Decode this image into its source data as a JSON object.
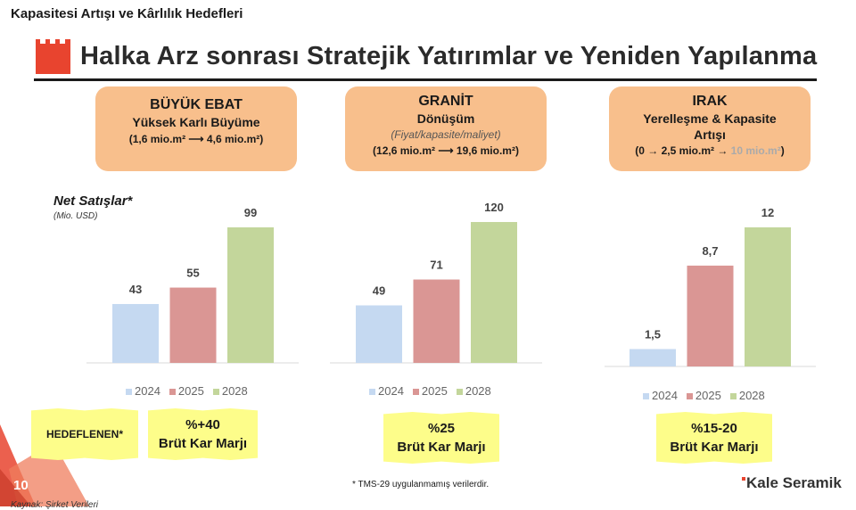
{
  "header": {
    "top_title": "Kapasitesi Artışı ve Kârlılık Hedefleri",
    "main_title": "Halka Arz sonrası Stratejik Yatırımlar ve Yeniden Yapılanma"
  },
  "segments": [
    {
      "title": "BÜYÜK EBAT",
      "subtitle": "Yüksek Karlı Büyüme",
      "detail": "",
      "capacity": "(1,6 mio.m² ⟶ 4,6 mio.m²)",
      "capacity_grey": "",
      "margin_value": "%+40",
      "margin_label": "Brüt Kar Marjı"
    },
    {
      "title": "GRANİT",
      "subtitle": "Dönüşüm",
      "detail": "(Fiyat/kapasite/maliyet)",
      "capacity": "(12,6 mio.m² ⟶ 19,6 mio.m²)",
      "capacity_grey": "",
      "margin_value": "%25",
      "margin_label": "Brüt Kar Marjı"
    },
    {
      "title": "IRAK",
      "subtitle": "Yerelleşme & Kapasite Artışı",
      "detail": "",
      "capacity": "(0 → 2,5 mio.m² →",
      "capacity_grey": "10 mio.m²",
      "capacity_end": ")",
      "margin_value": "%15-20",
      "margin_label": "Brüt Kar Marjı"
    }
  ],
  "net_sales": {
    "label": "Net Satışlar*",
    "unit": "(Mio. USD)"
  },
  "target_label": "HEDEFLENEN*",
  "colors": {
    "2024": "#c5d9f1",
    "2025": "#da9694",
    "2028": "#c3d69b",
    "box": "#f8bf8c",
    "note": "#fdfd8a",
    "accent": "#e8442f"
  },
  "chart_data": [
    {
      "type": "bar",
      "categories": [
        "2024",
        "2025",
        "2028"
      ],
      "values": [
        43,
        55,
        99
      ],
      "labels": [
        "43",
        "55",
        "99"
      ]
    },
    {
      "type": "bar",
      "categories": [
        "2024",
        "2025",
        "2028"
      ],
      "values": [
        49,
        71,
        120
      ],
      "labels": [
        "49",
        "71",
        "120"
      ]
    },
    {
      "type": "bar",
      "categories": [
        "2024",
        "2025",
        "2028"
      ],
      "values": [
        1.5,
        8.7,
        12
      ],
      "labels": [
        "1,5",
        "8,7",
        "12"
      ]
    }
  ],
  "footer": {
    "footnote": "* TMS-29 uygulanmamış verilerdir.",
    "brand": "Kale Seramik",
    "page": "10",
    "source": "Kaynak: Şirket Verileri"
  }
}
